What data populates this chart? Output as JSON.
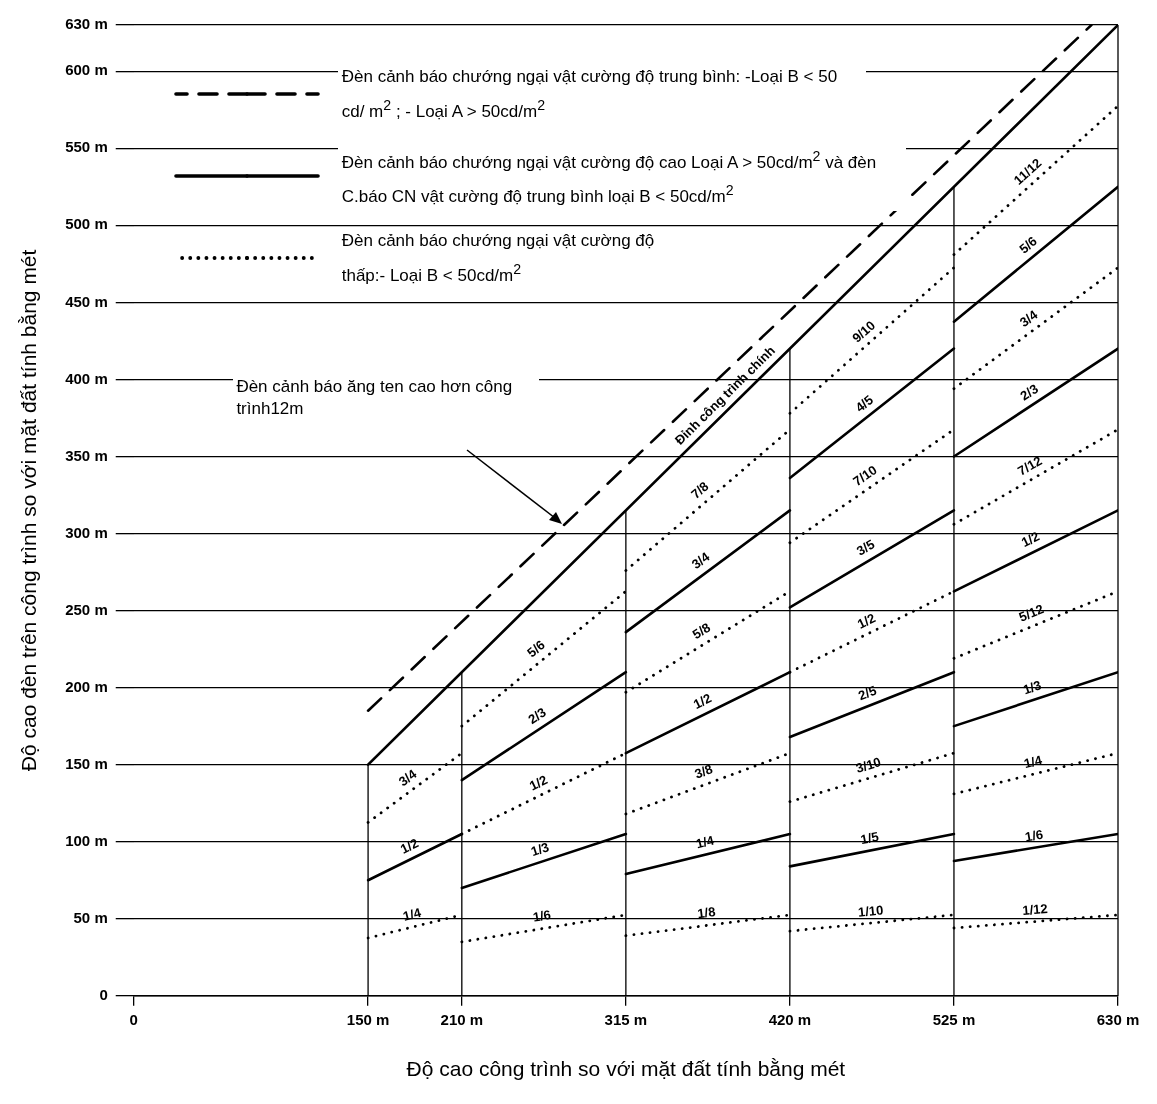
{
  "chart_data": {
    "type": "line",
    "xlabel": "Độ cao công trình so với mặt đất tính bằng mét",
    "ylabel": "Độ cao đèn trên công trình so với mặt đất tính bằng mét",
    "xlim": [
      0,
      630
    ],
    "ylim": [
      0,
      630
    ],
    "xticks": [
      0,
      {
        "value": 150,
        "label": "150 m"
      },
      {
        "value": 210,
        "label": "210 m"
      },
      {
        "value": 315,
        "label": "315 m"
      },
      {
        "value": 420,
        "label": "420 m"
      },
      {
        "value": 525,
        "label": "525 m"
      },
      {
        "value": 630,
        "label": "630 m"
      }
    ],
    "yticks": [
      0,
      {
        "value": 50,
        "label": "50 m"
      },
      {
        "value": 100,
        "label": "100 m"
      },
      {
        "value": 150,
        "label": "150 m"
      },
      {
        "value": 200,
        "label": "200 m"
      },
      {
        "value": 250,
        "label": "250 m"
      },
      {
        "value": 300,
        "label": "300 m"
      },
      {
        "value": 350,
        "label": "350 m"
      },
      {
        "value": 400,
        "label": "400 m"
      },
      {
        "value": 450,
        "label": "450 m"
      },
      {
        "value": 500,
        "label": "500 m"
      },
      {
        "value": 550,
        "label": "550 m"
      },
      {
        "value": 600,
        "label": "600 m"
      },
      {
        "value": 630,
        "label": "630 m"
      }
    ],
    "grid": "y",
    "legend": "top left",
    "series": [
      {
        "name": "Đèn cảnh báo chướng ngại vật cường độ trung bình: -Loại B < 50 cd/ m$^{2}$ ; - Loại A > 50cd/m$^{2}$",
        "color": "#000000",
        "line_style": "dashed",
        "x": [
          150,
          613
        ],
        "values": [
          185,
          630
        ]
      },
      {
        "name": "Đèn cảnh báo chướng ngại vật cường độ cao Loại A > 50cd/m$^{2}$ và đèn C.báo CN vật cường độ trung bình loại B < 50cd/m$^{2}$",
        "color": "#000000",
        "line_style": "solid",
        "x": [
          150,
          630
        ],
        "values": [
          150,
          630
        ]
      },
      {
        "color": "#000000",
        "line_style": "solid",
        "x": [
          150,
          210
        ],
        "values": [
          75,
          105
        ]
      },
      {
        "color": "#000000",
        "line_style": "solid",
        "x": [
          210,
          315
        ],
        "values": [
          140,
          210
        ]
      },
      {
        "color": "#000000",
        "line_style": "solid",
        "x": [
          210,
          315
        ],
        "values": [
          70,
          105
        ]
      },
      {
        "color": "#000000",
        "line_style": "solid",
        "x": [
          315,
          420
        ],
        "values": [
          236,
          315
        ]
      },
      {
        "color": "#000000",
        "line_style": "solid",
        "x": [
          315,
          420
        ],
        "values": [
          157.5,
          210
        ]
      },
      {
        "color": "#000000",
        "line_style": "solid",
        "x": [
          315,
          420
        ],
        "values": [
          79,
          105
        ]
      },
      {
        "color": "#000000",
        "line_style": "solid",
        "x": [
          420,
          525
        ],
        "values": [
          336,
          420
        ]
      },
      {
        "color": "#000000",
        "line_style": "solid",
        "x": [
          420,
          525
        ],
        "values": [
          252,
          315
        ]
      },
      {
        "color": "#000000",
        "line_style": "solid",
        "x": [
          420,
          525
        ],
        "values": [
          168,
          210
        ]
      },
      {
        "color": "#000000",
        "line_style": "solid",
        "x": [
          420,
          525
        ],
        "values": [
          84,
          105
        ]
      },
      {
        "color": "#000000",
        "line_style": "solid",
        "x": [
          525,
          630
        ],
        "values": [
          437.5,
          525
        ]
      },
      {
        "color": "#000000",
        "line_style": "solid",
        "x": [
          525,
          630
        ],
        "values": [
          350,
          420
        ]
      },
      {
        "color": "#000000",
        "line_style": "solid",
        "x": [
          525,
          630
        ],
        "values": [
          262.5,
          315
        ]
      },
      {
        "color": "#000000",
        "line_style": "solid",
        "x": [
          525,
          630
        ],
        "values": [
          175,
          210
        ]
      },
      {
        "color": "#000000",
        "line_style": "solid",
        "x": [
          525,
          630
        ],
        "values": [
          87.5,
          105
        ]
      },
      {
        "name": "Đèn cảnh báo chướng ngại vật cường độ thấp:- Loại B < 50cd/m$^{2}$",
        "color": "#000000",
        "line_style": "dotted",
        "x": [
          150,
          210
        ],
        "values": [
          112.5,
          157.5
        ]
      },
      {
        "color": "#000000",
        "line_style": "dotted",
        "x": [
          150,
          210
        ],
        "values": [
          37.5,
          52.5
        ]
      },
      {
        "color": "#000000",
        "line_style": "dotted",
        "x": [
          210,
          315
        ],
        "values": [
          175,
          262.5
        ]
      },
      {
        "color": "#000000",
        "line_style": "dotted",
        "x": [
          210,
          315
        ],
        "values": [
          105,
          157.5
        ]
      },
      {
        "color": "#000000",
        "line_style": "dotted",
        "x": [
          210,
          315
        ],
        "values": [
          35,
          52.5
        ]
      },
      {
        "color": "#000000",
        "line_style": "dotted",
        "x": [
          315,
          420
        ],
        "values": [
          276,
          367.5
        ]
      },
      {
        "color": "#000000",
        "line_style": "dotted",
        "x": [
          315,
          420
        ],
        "values": [
          197,
          262.5
        ]
      },
      {
        "color": "#000000",
        "line_style": "dotted",
        "x": [
          315,
          420
        ],
        "values": [
          118,
          157.5
        ]
      },
      {
        "color": "#000000",
        "line_style": "dotted",
        "x": [
          315,
          420
        ],
        "values": [
          39,
          52.5
        ]
      },
      {
        "color": "#000000",
        "line_style": "dotted",
        "x": [
          420,
          525
        ],
        "values": [
          378,
          472.5
        ]
      },
      {
        "color": "#000000",
        "line_style": "dotted",
        "x": [
          420,
          525
        ],
        "values": [
          294,
          367.5
        ]
      },
      {
        "color": "#000000",
        "line_style": "dotted",
        "x": [
          420,
          525
        ],
        "values": [
          210,
          262.5
        ]
      },
      {
        "color": "#000000",
        "line_style": "dotted",
        "x": [
          420,
          525
        ],
        "values": [
          126,
          157.5
        ]
      },
      {
        "color": "#000000",
        "line_style": "dotted",
        "x": [
          420,
          525
        ],
        "values": [
          42,
          52.5
        ]
      },
      {
        "color": "#000000",
        "line_style": "dotted",
        "x": [
          525,
          630
        ],
        "values": [
          481,
          577.5
        ]
      },
      {
        "color": "#000000",
        "line_style": "dotted",
        "x": [
          525,
          630
        ],
        "values": [
          394,
          472.5
        ]
      },
      {
        "color": "#000000",
        "line_style": "dotted",
        "x": [
          525,
          630
        ],
        "values": [
          306,
          367.5
        ]
      },
      {
        "color": "#000000",
        "line_style": "dotted",
        "x": [
          525,
          630
        ],
        "values": [
          219,
          262.5
        ]
      },
      {
        "color": "#000000",
        "line_style": "dotted",
        "x": [
          525,
          630
        ],
        "values": [
          131,
          157.5
        ]
      },
      {
        "color": "#000000",
        "line_style": "dotted",
        "x": [
          525,
          630
        ],
        "values": [
          44,
          52.5
        ]
      }
    ],
    "ref_lines": [
      {
        "axis": "x",
        "value": 150,
        "color": "#000000"
      },
      {
        "axis": "x",
        "value": 210,
        "color": "#000000"
      },
      {
        "axis": "x",
        "value": 315,
        "color": "#000000"
      },
      {
        "axis": "x",
        "value": 420,
        "color": "#000000"
      },
      {
        "axis": "x",
        "value": 525,
        "color": "#000000"
      }
    ],
    "annotations": [
      "Đèn cảnh báo ăng ten cao hơn công trình12m",
      {
        "text": "Đỉnh công trình chính",
        "x": 384,
        "y": 384
      },
      {
        "text": "3/4",
        "x": 180,
        "y": 135
      },
      {
        "text": "1/2",
        "x": 180,
        "y": 90
      },
      {
        "text": "1/4",
        "x": 180,
        "y": 45
      },
      {
        "text": "5/6",
        "x": 262.5,
        "y": 219
      },
      {
        "text": "2/3",
        "x": 262.5,
        "y": 175
      },
      {
        "text": "1/2",
        "x": 262.5,
        "y": 131
      },
      {
        "text": "1/3",
        "x": 262.5,
        "y": 87.5
      },
      {
        "text": "1/6",
        "x": 262.5,
        "y": 44
      },
      {
        "text": "7/8",
        "x": 367.5,
        "y": 322
      },
      {
        "text": "3/4",
        "x": 367.5,
        "y": 276
      },
      {
        "text": "5/8",
        "x": 367.5,
        "y": 230
      },
      {
        "text": "1/2",
        "x": 367.5,
        "y": 184
      },
      {
        "text": "3/8",
        "x": 367.5,
        "y": 138
      },
      {
        "text": "1/4",
        "x": 367.5,
        "y": 92
      },
      {
        "text": "1/8",
        "x": 367.5,
        "y": 46
      },
      {
        "text": "9/10",
        "x": 472.5,
        "y": 425
      },
      {
        "text": "4/5",
        "x": 472.5,
        "y": 378
      },
      {
        "text": "7/10",
        "x": 472.5,
        "y": 331
      },
      {
        "text": "3/5",
        "x": 472.5,
        "y": 284
      },
      {
        "text": "1/2",
        "x": 472.5,
        "y": 236
      },
      {
        "text": "2/5",
        "x": 472.5,
        "y": 189
      },
      {
        "text": "3/10",
        "x": 472.5,
        "y": 142
      },
      {
        "text": "1/5",
        "x": 472.5,
        "y": 94.5
      },
      {
        "text": "1/10",
        "x": 472.5,
        "y": 47
      },
      {
        "text": "11/12",
        "x": 577.5,
        "y": 529
      },
      {
        "text": "5/6",
        "x": 577.5,
        "y": 481
      },
      {
        "text": "3/4",
        "x": 577.5,
        "y": 433
      },
      {
        "text": "2/3",
        "x": 577.5,
        "y": 385
      },
      {
        "text": "7/12",
        "x": 577.5,
        "y": 337
      },
      {
        "text": "1/2",
        "x": 577.5,
        "y": 289
      },
      {
        "text": "5/12",
        "x": 577.5,
        "y": 241
      },
      {
        "text": "1/3",
        "x": 577.5,
        "y": 192.5
      },
      {
        "text": "1/4",
        "x": 577.5,
        "y": 144
      },
      {
        "text": "1/6",
        "x": 577.5,
        "y": 96
      },
      {
        "text": "1/12",
        "x": 577.5,
        "y": 48
      }
    ]
  }
}
